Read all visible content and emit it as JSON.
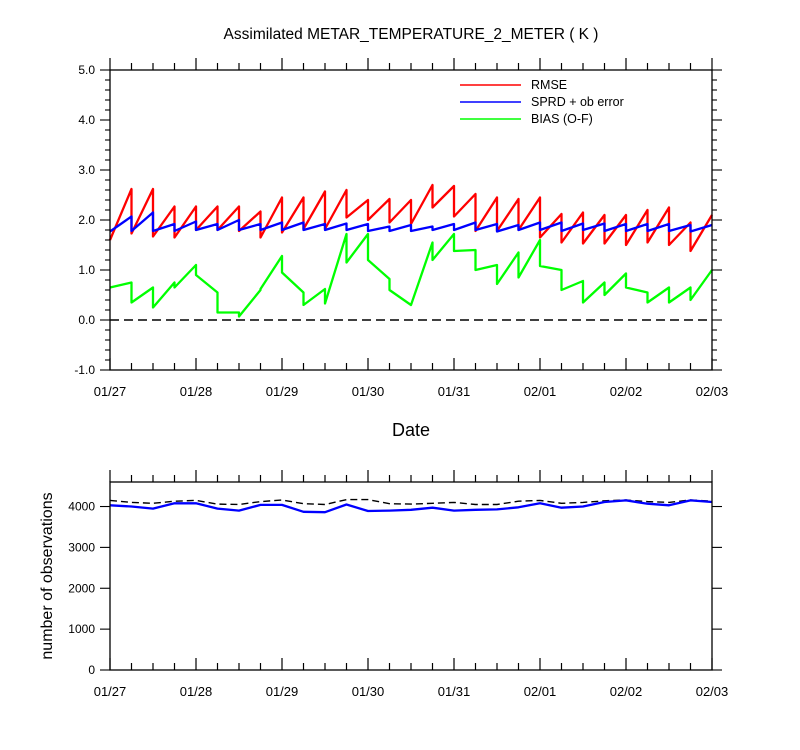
{
  "chart_data": [
    {
      "type": "line",
      "title": "Assimilated METAR_TEMPERATURE_2_METER ( K )",
      "xlabel": "Date",
      "ylabel": "",
      "xlim": [
        0,
        7
      ],
      "ylim": [
        -1.0,
        5.0
      ],
      "x_tick_labels": [
        "01/27",
        "01/28",
        "01/29",
        "01/30",
        "01/31",
        "02/01",
        "02/02",
        "02/03"
      ],
      "y_tick_labels": [
        "-1.0",
        "0.0",
        "1.0",
        "2.0",
        "3.0",
        "4.0",
        "5.0"
      ],
      "y_ticks": [
        -1,
        0,
        1,
        2,
        3,
        4,
        5
      ],
      "x_units": "days from 01/27",
      "legend": "top-right",
      "grid": false,
      "reference_line": {
        "y": 0,
        "style": "dashed",
        "color": "#000000"
      },
      "series": [
        {
          "name": "RMSE",
          "color": "#ff0000",
          "x": [
            0,
            0.25,
            0.25,
            0.5,
            0.5,
            0.75,
            0.75,
            1,
            1,
            1.25,
            1.25,
            1.5,
            1.5,
            1.75,
            1.75,
            2,
            2,
            2.25,
            2.25,
            2.5,
            2.5,
            2.75,
            2.75,
            3,
            3,
            3.25,
            3.25,
            3.5,
            3.5,
            3.75,
            3.75,
            4,
            4,
            4.25,
            4.25,
            4.5,
            4.5,
            4.75,
            4.75,
            5,
            5,
            5.25,
            5.25,
            5.5,
            5.5,
            5.75,
            5.75,
            6,
            6,
            6.25,
            6.25,
            6.5,
            6.5,
            6.75,
            6.75,
            7
          ],
          "y": [
            1.6,
            2.62,
            1.73,
            2.62,
            1.67,
            2.27,
            1.65,
            2.27,
            1.8,
            2.27,
            1.8,
            2.27,
            1.78,
            2.17,
            1.65,
            2.45,
            1.75,
            2.45,
            1.82,
            2.57,
            1.82,
            2.6,
            2.05,
            2.4,
            2.0,
            2.42,
            1.95,
            2.4,
            1.92,
            2.7,
            2.25,
            2.68,
            2.07,
            2.52,
            1.78,
            2.45,
            1.78,
            2.42,
            1.8,
            2.45,
            1.65,
            2.12,
            1.55,
            2.15,
            1.53,
            2.1,
            1.53,
            2.1,
            1.5,
            2.2,
            1.55,
            2.25,
            1.5,
            1.95,
            1.38,
            2.1
          ]
        },
        {
          "name": "SPRD + ob error",
          "color": "#0000ff",
          "x": [
            0,
            0.25,
            0.25,
            0.5,
            0.5,
            0.75,
            0.75,
            1,
            1,
            1.25,
            1.25,
            1.5,
            1.5,
            1.75,
            1.75,
            2,
            2,
            2.25,
            2.25,
            2.5,
            2.5,
            2.75,
            2.75,
            3,
            3,
            3.25,
            3.25,
            3.5,
            3.5,
            3.75,
            3.75,
            4,
            4,
            4.25,
            4.25,
            4.5,
            4.5,
            4.75,
            4.75,
            5,
            5,
            5.25,
            5.25,
            5.5,
            5.5,
            5.75,
            5.75,
            6,
            6,
            6.25,
            6.25,
            6.5,
            6.5,
            6.75,
            6.75,
            7
          ],
          "y": [
            1.77,
            2.07,
            1.78,
            2.15,
            1.78,
            1.92,
            1.78,
            1.97,
            1.8,
            1.92,
            1.8,
            2.0,
            1.8,
            1.92,
            1.8,
            1.95,
            1.8,
            1.95,
            1.8,
            1.92,
            1.8,
            1.93,
            1.8,
            1.92,
            1.78,
            1.87,
            1.78,
            1.9,
            1.78,
            1.87,
            1.8,
            1.92,
            1.8,
            1.95,
            1.8,
            1.92,
            1.77,
            1.9,
            1.8,
            1.95,
            1.8,
            1.95,
            1.78,
            1.93,
            1.8,
            1.93,
            1.78,
            1.92,
            1.78,
            1.92,
            1.78,
            1.92,
            1.78,
            1.9,
            1.77,
            1.9
          ]
        },
        {
          "name": "BIAS (O-F)",
          "color": "#00ff00",
          "x": [
            0,
            0.25,
            0.25,
            0.5,
            0.5,
            0.75,
            0.75,
            1,
            1,
            1.25,
            1.25,
            1.5,
            1.5,
            1.75,
            1.75,
            2,
            2,
            2.25,
            2.25,
            2.5,
            2.5,
            2.75,
            2.75,
            3,
            3,
            3.25,
            3.25,
            3.5,
            3.5,
            3.75,
            3.75,
            4,
            4,
            4.25,
            4.25,
            4.5,
            4.5,
            4.75,
            4.75,
            5,
            5,
            5.25,
            5.25,
            5.5,
            5.5,
            5.75,
            5.75,
            6,
            6,
            6.25,
            6.25,
            6.5,
            6.5,
            6.75,
            6.75,
            7
          ],
          "y": [
            0.65,
            0.75,
            0.35,
            0.65,
            0.25,
            0.75,
            0.65,
            1.1,
            0.9,
            0.55,
            0.15,
            0.15,
            0.07,
            0.6,
            0.62,
            1.28,
            0.95,
            0.55,
            0.3,
            0.62,
            0.33,
            1.72,
            1.15,
            1.72,
            1.2,
            0.82,
            0.6,
            0.3,
            0.3,
            1.55,
            1.2,
            1.72,
            1.38,
            1.4,
            1.0,
            1.1,
            0.72,
            1.35,
            0.85,
            1.6,
            1.08,
            1.0,
            0.6,
            0.78,
            0.35,
            0.75,
            0.5,
            0.93,
            0.65,
            0.55,
            0.35,
            0.65,
            0.35,
            0.65,
            0.4,
            1.0
          ]
        }
      ]
    },
    {
      "type": "line",
      "title": "",
      "xlabel": "",
      "ylabel": "number of observations",
      "xlim": [
        0,
        7
      ],
      "ylim": [
        0,
        4600
      ],
      "x_tick_labels": [
        "01/27",
        "01/28",
        "01/29",
        "01/30",
        "01/31",
        "02/01",
        "02/02",
        "02/03"
      ],
      "y_tick_labels": [
        "0",
        "1000",
        "2000",
        "3000",
        "4000"
      ],
      "y_ticks": [
        0,
        1000,
        2000,
        3000,
        4000
      ],
      "x_units": "days from 01/27",
      "legend": "none",
      "grid": false,
      "series": [
        {
          "name": "",
          "color": "#000000",
          "style": "dashed",
          "x": [
            0,
            0.25,
            0.5,
            0.75,
            1,
            1.25,
            1.5,
            1.75,
            2,
            2.25,
            2.5,
            2.75,
            3,
            3.25,
            3.5,
            3.75,
            4,
            4.25,
            4.5,
            4.75,
            5,
            5.25,
            5.5,
            5.75,
            6,
            6.25,
            6.5,
            6.75,
            7
          ],
          "y": [
            4150,
            4100,
            4080,
            4130,
            4150,
            4060,
            4050,
            4120,
            4160,
            4070,
            4050,
            4170,
            4170,
            4070,
            4060,
            4080,
            4100,
            4050,
            4050,
            4130,
            4150,
            4080,
            4100,
            4140,
            4160,
            4120,
            4100,
            4160,
            4130
          ]
        },
        {
          "name": "",
          "color": "#0000ff",
          "style": "solid",
          "x": [
            0,
            0.25,
            0.5,
            0.75,
            1,
            1.25,
            1.5,
            1.75,
            2,
            2.25,
            2.5,
            2.75,
            3,
            3.25,
            3.5,
            3.75,
            4,
            4.25,
            4.5,
            4.75,
            5,
            5.25,
            5.5,
            5.75,
            6,
            6.25,
            6.5,
            6.75,
            7
          ],
          "y": [
            4030,
            4000,
            3950,
            4080,
            4080,
            3950,
            3900,
            4040,
            4040,
            3870,
            3860,
            4050,
            3890,
            3900,
            3920,
            3970,
            3900,
            3920,
            3930,
            3980,
            4080,
            3970,
            4000,
            4110,
            4150,
            4070,
            4030,
            4150,
            4110
          ]
        }
      ]
    }
  ]
}
